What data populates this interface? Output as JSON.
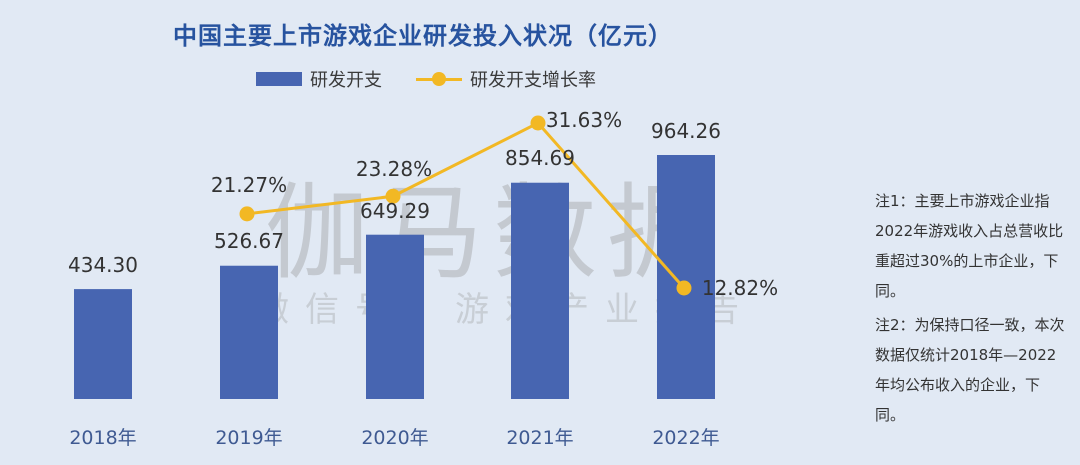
{
  "title": "中国主要上市游戏企业研发投入状况（亿元）",
  "legend": {
    "bar_label": "研发开支",
    "line_label": "研发开支增长率"
  },
  "watermark": {
    "main": "伽马数据",
    "sub": "微信号：游戏产业报告"
  },
  "notes": [
    "注1：主要上市游戏企业指2022年游戏收入占总营收比重超过30%的上市企业，下同。",
    "注2：为保持口径一致，本次数据仅统计2018年—2022年均公布收入的企业，下同。"
  ],
  "colors": {
    "bar": "#4765b1",
    "line": "#f2b824",
    "title": "#27539f",
    "background": "#e1e9f4"
  },
  "chart_data": {
    "type": "bar",
    "title": "中国主要上市游戏企业研发投入状况（亿元）",
    "xlabel": "",
    "ylabel": "",
    "categories": [
      "2018年",
      "2019年",
      "2020年",
      "2021年",
      "2022年"
    ],
    "series": [
      {
        "name": "研发开支",
        "type": "bar",
        "values": [
          434.3,
          526.67,
          649.29,
          854.69,
          964.26
        ],
        "labels": [
          "434.30",
          "526.67",
          "649.29",
          "854.69",
          "964.26"
        ]
      },
      {
        "name": "研发开支增长率",
        "type": "line",
        "values": [
          null,
          21.27,
          23.28,
          31.63,
          12.82
        ],
        "labels": [
          "",
          "21.27%",
          "23.28%",
          "31.63%",
          "12.82%"
        ]
      }
    ],
    "grid": false,
    "legend_position": "top"
  }
}
